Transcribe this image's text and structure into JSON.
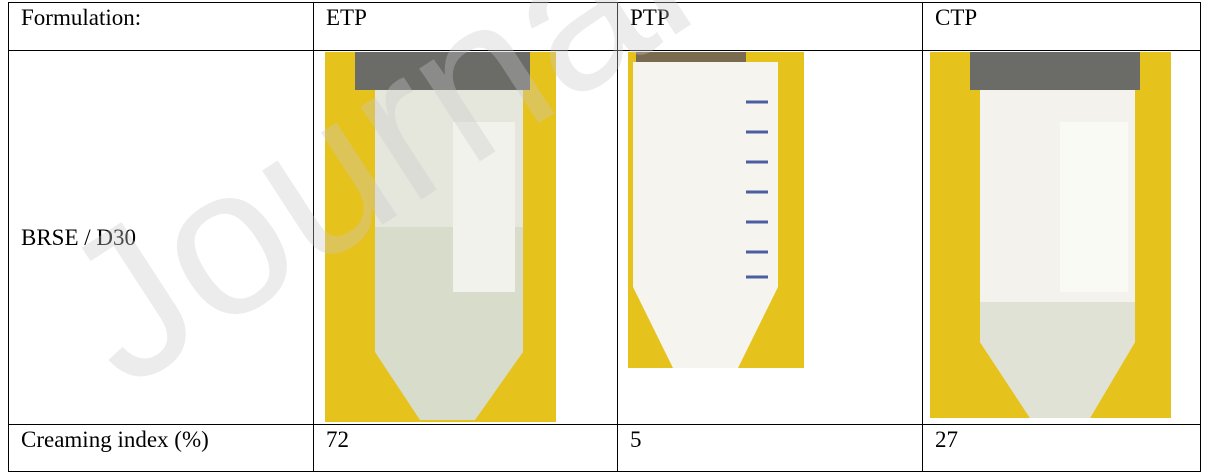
{
  "table": {
    "header": [
      "Formulation:",
      "ETP",
      "PTP",
      "CTP"
    ],
    "rows": [
      [
        "BRSE / D30"
      ],
      [
        "Creaming index (%)",
        "72",
        "5",
        "27"
      ]
    ]
  },
  "watermark": "Journal"
}
